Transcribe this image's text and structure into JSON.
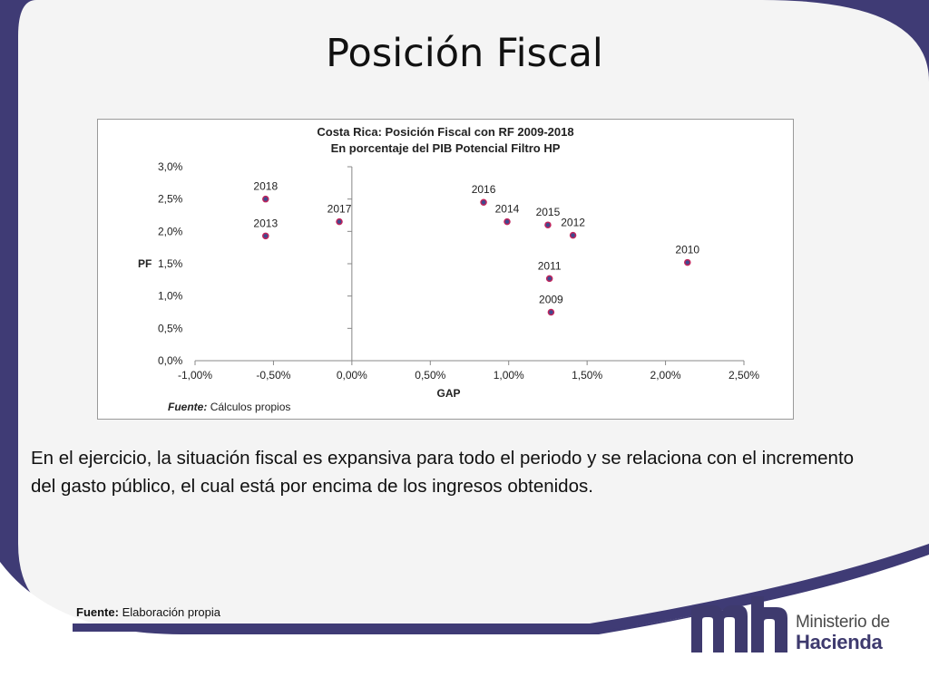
{
  "slide": {
    "title": "Posición Fiscal",
    "body_text": "En el ejercicio, la situación fiscal es expansiva para todo el periodo y se relaciona con el incremento del gasto público, el cual está por encima de los ingresos obtenidos.",
    "footer_source_label": "Fuente:",
    "footer_source_text": "Elaboración propia",
    "logo_line1": "Ministerio de",
    "logo_line2": "Hacienda",
    "logo_mark": "mh"
  },
  "colors": {
    "background_frame": "#3f3b75",
    "slide_panel": "#f4f4f4",
    "accent_band": "#3f3b75",
    "point_fill": "#3e4a8f",
    "point_stroke": "#c0245c"
  },
  "chart_source": {
    "label": "Fuente:",
    "text": "Cálculos propios"
  },
  "chart_data": {
    "type": "scatter",
    "title": "Costa Rica: Posición Fiscal con RF 2009-2018",
    "subtitle": "En porcentaje del PIB Potencial Filtro HP",
    "xlabel": "GAP",
    "ylabel": "PF",
    "xlim": [
      -1.0,
      2.5
    ],
    "ylim": [
      0.0,
      3.0
    ],
    "x_ticks": [
      "-1,00%",
      "-0,50%",
      "0,00%",
      "0,50%",
      "1,00%",
      "1,50%",
      "2,00%",
      "2,50%"
    ],
    "y_ticks": [
      "0,0%",
      "0,5%",
      "1,0%",
      "1,5%",
      "2,0%",
      "2,5%",
      "3,0%"
    ],
    "points": [
      {
        "label": "2018",
        "x": -0.55,
        "y": 2.5
      },
      {
        "label": "2013",
        "x": -0.55,
        "y": 1.93
      },
      {
        "label": "2017",
        "x": -0.08,
        "y": 2.15
      },
      {
        "label": "2016",
        "x": 0.84,
        "y": 2.45
      },
      {
        "label": "2014",
        "x": 0.99,
        "y": 2.15
      },
      {
        "label": "2015",
        "x": 1.25,
        "y": 2.1
      },
      {
        "label": "2012",
        "x": 1.41,
        "y": 1.94
      },
      {
        "label": "2010",
        "x": 2.14,
        "y": 1.52
      },
      {
        "label": "2011",
        "x": 1.26,
        "y": 1.27
      },
      {
        "label": "2009",
        "x": 1.27,
        "y": 0.75
      }
    ]
  }
}
